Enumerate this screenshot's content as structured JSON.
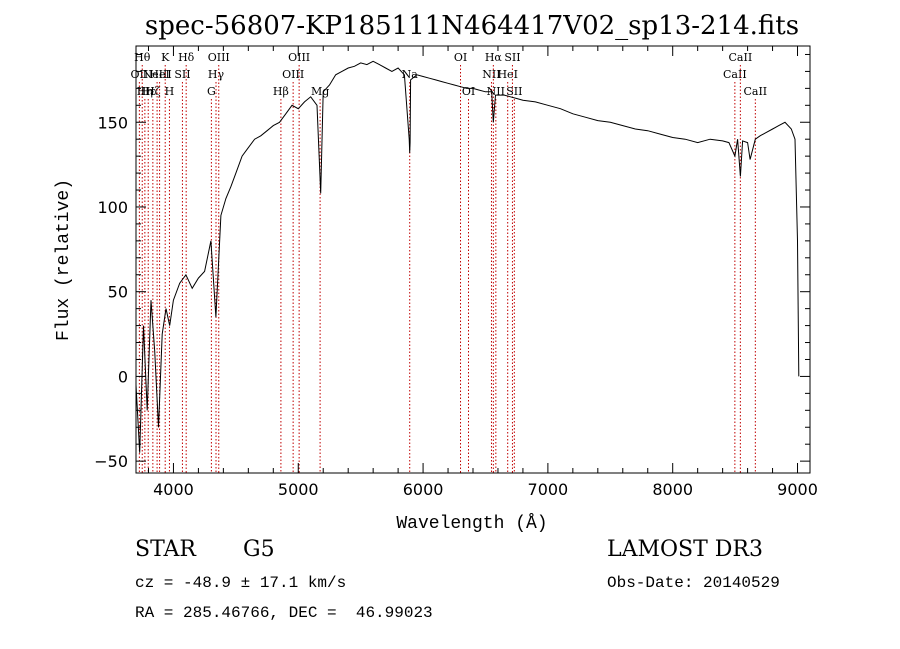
{
  "chart_data": {
    "type": "line",
    "title": "spec-56807-KP185111N464417V02_sp13-214.fits",
    "xlabel": "Wavelength (Å)",
    "ylabel": "Flux (relative)",
    "xlim": [
      3700,
      9100
    ],
    "ylim": [
      -57,
      195
    ],
    "xticks": [
      4000,
      5000,
      6000,
      7000,
      8000,
      9000
    ],
    "yticks": [
      -50,
      0,
      50,
      100,
      150
    ],
    "grid": false,
    "series": [
      {
        "name": "spectrum",
        "x": [
          3700,
          3730,
          3760,
          3790,
          3820,
          3850,
          3880,
          3910,
          3940,
          3970,
          4000,
          4050,
          4100,
          4150,
          4200,
          4250,
          4300,
          4340,
          4380,
          4420,
          4460,
          4500,
          4550,
          4600,
          4650,
          4700,
          4750,
          4800,
          4850,
          4900,
          4950,
          5000,
          5050,
          5100,
          5150,
          5180,
          5200,
          5250,
          5300,
          5350,
          5400,
          5450,
          5500,
          5550,
          5600,
          5650,
          5700,
          5750,
          5800,
          5850,
          5889,
          5893,
          5896,
          5900,
          5950,
          6000,
          6050,
          6100,
          6150,
          6200,
          6250,
          6300,
          6350,
          6400,
          6450,
          6500,
          6550,
          6563,
          6580,
          6650,
          6700,
          6750,
          6800,
          6900,
          7000,
          7100,
          7200,
          7300,
          7400,
          7500,
          7600,
          7700,
          7800,
          7900,
          8000,
          8100,
          8200,
          8300,
          8400,
          8450,
          8498,
          8520,
          8542,
          8560,
          8600,
          8620,
          8662,
          8700,
          8750,
          8800,
          8850,
          8900,
          8950,
          8980,
          9000,
          9010
        ],
        "values": [
          -5,
          -45,
          30,
          -20,
          45,
          15,
          -30,
          25,
          40,
          30,
          45,
          55,
          60,
          52,
          58,
          62,
          80,
          35,
          95,
          105,
          112,
          120,
          130,
          135,
          140,
          142,
          145,
          148,
          150,
          155,
          160,
          158,
          162,
          165,
          160,
          108,
          168,
          172,
          178,
          180,
          182,
          183,
          185,
          184,
          186,
          184,
          182,
          180,
          182,
          178,
          140,
          132,
          138,
          175,
          178,
          177,
          176,
          175,
          174,
          173,
          172,
          171,
          170,
          170,
          169,
          168,
          168,
          150,
          166,
          166,
          165,
          164,
          163,
          162,
          160,
          158,
          155,
          153,
          151,
          150,
          148,
          146,
          145,
          143,
          141,
          140,
          138,
          140,
          139,
          138,
          130,
          140,
          118,
          139,
          138,
          128,
          140,
          142,
          144,
          146,
          148,
          150,
          146,
          140,
          80,
          0
        ]
      }
    ],
    "line_markers": [
      {
        "x": 3727,
        "label": "OII",
        "row": 1
      },
      {
        "x": 3750,
        "label": "Hθ",
        "row": 0
      },
      {
        "x": 3771,
        "label": "Hη",
        "row": 2
      },
      {
        "x": 3798,
        "label": "Hε",
        "row": 2
      },
      {
        "x": 3835,
        "label": "Hζ",
        "row": 2
      },
      {
        "x": 3869,
        "label": "NeIII",
        "row": 1
      },
      {
        "x": 3889,
        "label": "HeI",
        "row": 1
      },
      {
        "x": 3934,
        "label": "K",
        "row": 0
      },
      {
        "x": 3968,
        "label": "H",
        "row": 2
      },
      {
        "x": 4072,
        "label": "SII",
        "row": 1
      },
      {
        "x": 4102,
        "label": "Hδ",
        "row": 0
      },
      {
        "x": 4304,
        "label": "G",
        "row": 2
      },
      {
        "x": 4341,
        "label": "Hγ",
        "row": 1
      },
      {
        "x": 4363,
        "label": "OIII",
        "row": 0
      },
      {
        "x": 4861,
        "label": "Hβ",
        "row": 2
      },
      {
        "x": 4959,
        "label": "OIII",
        "row": 1
      },
      {
        "x": 5007,
        "label": "OIII",
        "row": 0
      },
      {
        "x": 5175,
        "label": "Mg",
        "row": 2
      },
      {
        "x": 5893,
        "label": "Na",
        "row": 1
      },
      {
        "x": 6300,
        "label": "OI",
        "row": 0
      },
      {
        "x": 6364,
        "label": "OI",
        "row": 2
      },
      {
        "x": 6548,
        "label": "NII",
        "row": 1
      },
      {
        "x": 6563,
        "label": "Hα",
        "row": 0
      },
      {
        "x": 6583,
        "label": "NII",
        "row": 2
      },
      {
        "x": 6678,
        "label": "HeI",
        "row": 1
      },
      {
        "x": 6716,
        "label": "SII",
        "row": 0
      },
      {
        "x": 6731,
        "label": "SII",
        "row": 2
      },
      {
        "x": 8498,
        "label": "CaII",
        "row": 1
      },
      {
        "x": 8542,
        "label": "CaII",
        "row": 0
      },
      {
        "x": 8662,
        "label": "CaII",
        "row": 2
      }
    ]
  },
  "info": {
    "object_class": "STAR",
    "subclass": "G5",
    "survey": "LAMOST DR3",
    "cz": "cz = -48.9 ± 17.1 km/s",
    "obs_date": "Obs-Date: 20140529",
    "coords": "RA = 285.46766, DEC =  46.99023"
  }
}
